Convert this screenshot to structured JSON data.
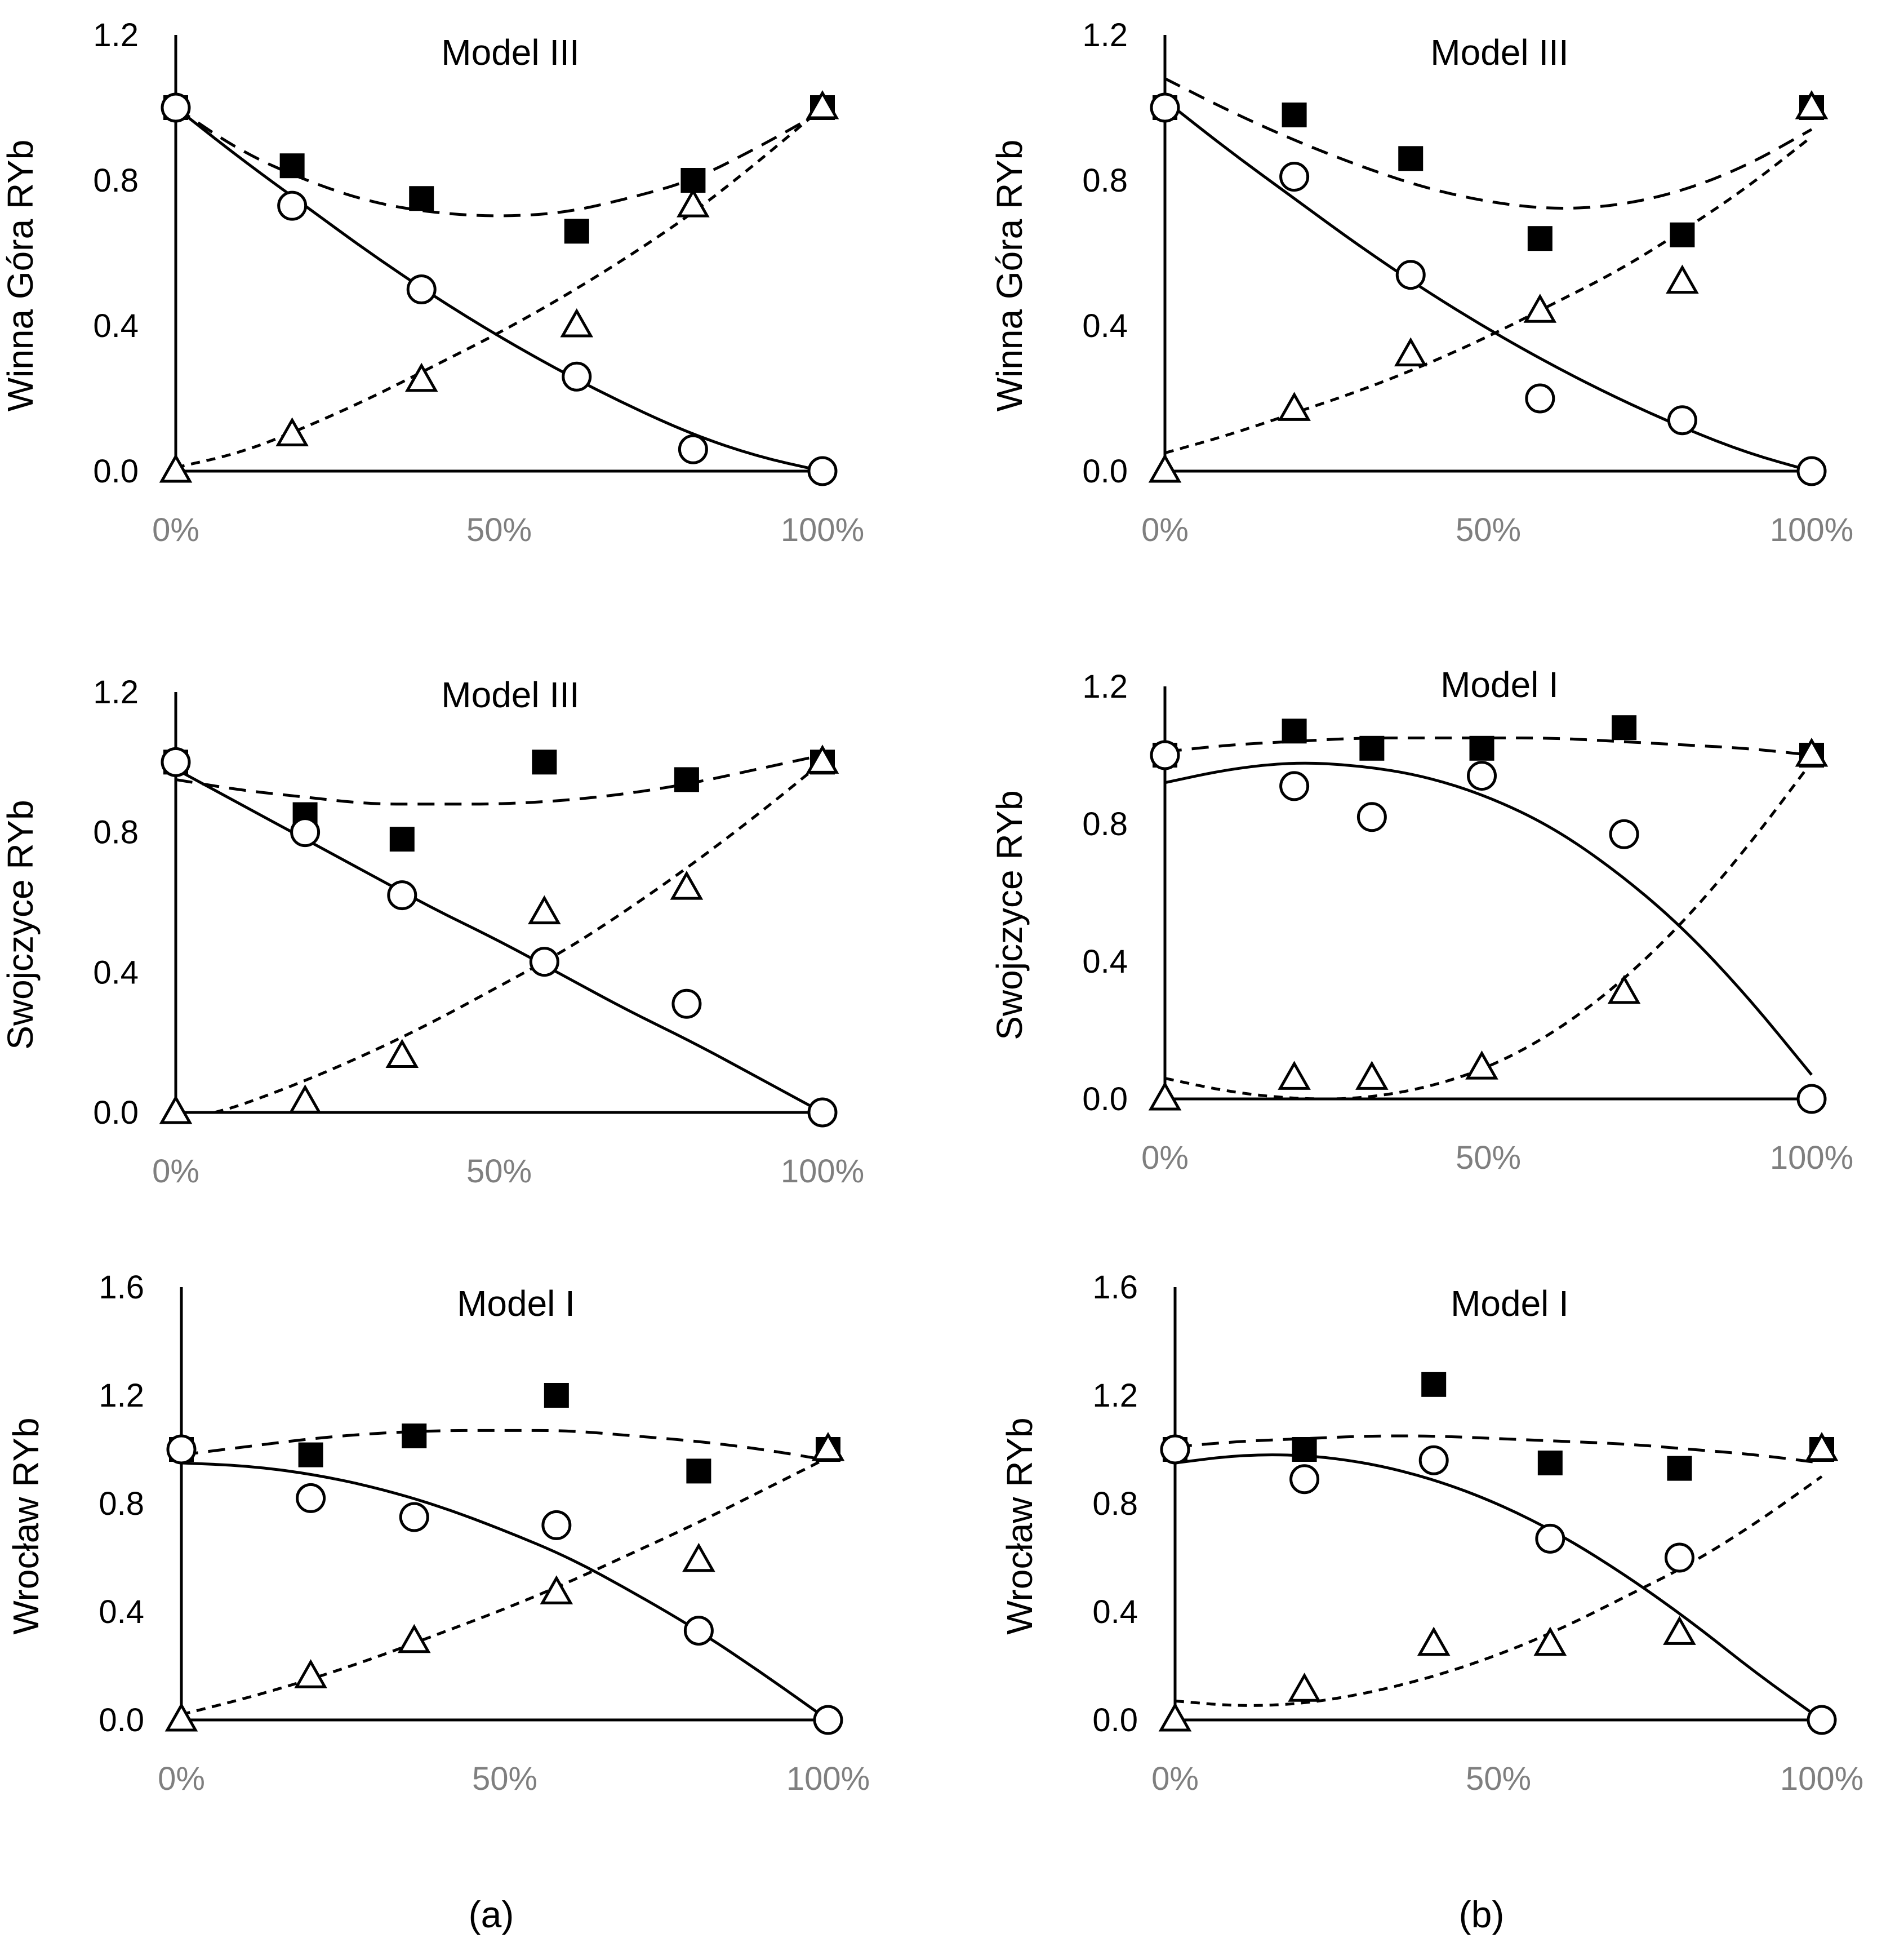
{
  "chart_data": [
    {
      "type": "scatter",
      "title": "Model III",
      "ylabel": "Winna Góra RYb",
      "xlabel": "",
      "ylim": [
        0,
        1.2
      ],
      "yticks": [
        "0.0",
        "0.4",
        "0.8",
        "1.2"
      ],
      "yticks_values": [
        0,
        0.4,
        0.8,
        1.2
      ],
      "xticks": [
        "0%",
        "50%",
        "100%"
      ],
      "series": [
        {
          "name": "squares",
          "marker": "square",
          "x": [
            0,
            18,
            38,
            62,
            80,
            100
          ],
          "y": [
            1.0,
            0.84,
            0.75,
            0.66,
            0.8,
            1.0
          ]
        },
        {
          "name": "circles",
          "marker": "circle",
          "x": [
            0,
            18,
            38,
            62,
            80,
            100
          ],
          "y": [
            1.0,
            0.73,
            0.5,
            0.26,
            0.06,
            0.0
          ]
        },
        {
          "name": "triangles",
          "marker": "triangle",
          "x": [
            0,
            18,
            38,
            62,
            80,
            100
          ],
          "y": [
            0.0,
            0.1,
            0.25,
            0.4,
            0.73,
            1.0
          ]
        }
      ],
      "trendlines": [
        {
          "series": "squares",
          "style": "dashed",
          "x": [
            0,
            10,
            20,
            30,
            40,
            50,
            60,
            70,
            80,
            90,
            100
          ],
          "y": [
            1.0,
            0.88,
            0.8,
            0.74,
            0.71,
            0.7,
            0.71,
            0.75,
            0.8,
            0.89,
            0.99
          ]
        },
        {
          "series": "circles",
          "style": "solid",
          "x": [
            0,
            10,
            20,
            30,
            40,
            50,
            60,
            70,
            80,
            90,
            100
          ],
          "y": [
            1.0,
            0.86,
            0.73,
            0.6,
            0.48,
            0.37,
            0.27,
            0.18,
            0.1,
            0.04,
            0.0
          ]
        },
        {
          "series": "triangles",
          "style": "short-dashed",
          "x": [
            0,
            10,
            20,
            30,
            40,
            50,
            60,
            70,
            80,
            90,
            100
          ],
          "y": [
            0.01,
            0.05,
            0.12,
            0.2,
            0.29,
            0.38,
            0.48,
            0.59,
            0.71,
            0.85,
            1.0
          ]
        }
      ]
    },
    {
      "type": "scatter",
      "title": "Model III",
      "ylabel": "Winna Góra RYb",
      "xlabel": "",
      "ylim": [
        0,
        1.2
      ],
      "yticks": [
        "0.0",
        "0.4",
        "0.8",
        "1.2"
      ],
      "yticks_values": [
        0,
        0.4,
        0.8,
        1.2
      ],
      "xticks": [
        "0%",
        "50%",
        "100%"
      ],
      "series": [
        {
          "name": "squares",
          "marker": "square",
          "x": [
            0,
            20,
            38,
            58,
            80,
            100
          ],
          "y": [
            1.0,
            0.98,
            0.86,
            0.64,
            0.65,
            1.0
          ]
        },
        {
          "name": "circles",
          "marker": "circle",
          "x": [
            0,
            20,
            38,
            58,
            80,
            100
          ],
          "y": [
            1.0,
            0.81,
            0.54,
            0.2,
            0.14,
            0.0
          ]
        },
        {
          "name": "triangles",
          "marker": "triangle",
          "x": [
            0,
            20,
            38,
            58,
            80,
            100
          ],
          "y": [
            0.0,
            0.17,
            0.32,
            0.44,
            0.52,
            1.0
          ]
        }
      ],
      "trendlines": [
        {
          "series": "squares",
          "style": "dashed",
          "x": [
            0,
            10,
            20,
            30,
            40,
            50,
            60,
            70,
            80,
            90,
            100
          ],
          "y": [
            1.08,
            0.99,
            0.91,
            0.84,
            0.78,
            0.74,
            0.72,
            0.73,
            0.77,
            0.84,
            0.94
          ]
        },
        {
          "series": "circles",
          "style": "solid",
          "x": [
            0,
            10,
            20,
            30,
            40,
            50,
            60,
            70,
            80,
            90,
            100
          ],
          "y": [
            1.02,
            0.88,
            0.75,
            0.62,
            0.5,
            0.39,
            0.29,
            0.2,
            0.12,
            0.05,
            0.0
          ]
        },
        {
          "series": "triangles",
          "style": "short-dashed",
          "x": [
            0,
            10,
            20,
            30,
            40,
            50,
            60,
            70,
            80,
            90,
            100
          ],
          "y": [
            0.05,
            0.1,
            0.16,
            0.22,
            0.29,
            0.37,
            0.46,
            0.55,
            0.66,
            0.78,
            0.92
          ]
        }
      ]
    },
    {
      "type": "scatter",
      "title": "Model III",
      "ylabel": "Swojczyce RYb",
      "xlabel": "",
      "ylim": [
        0,
        1.2
      ],
      "yticks": [
        "0.0",
        "0.4",
        "0.8",
        "1.2"
      ],
      "yticks_values": [
        0,
        0.4,
        0.8,
        1.2
      ],
      "xticks": [
        "0%",
        "50%",
        "100%"
      ],
      "series": [
        {
          "name": "squares",
          "marker": "square",
          "x": [
            0,
            20,
            35,
            57,
            79,
            100
          ],
          "y": [
            1.0,
            0.85,
            0.78,
            1.0,
            0.95,
            1.0
          ]
        },
        {
          "name": "circles",
          "marker": "circle",
          "x": [
            0,
            20,
            35,
            57,
            79,
            100
          ],
          "y": [
            1.0,
            0.8,
            0.62,
            0.43,
            0.31,
            0.0
          ]
        },
        {
          "name": "triangles",
          "marker": "triangle",
          "x": [
            0,
            20,
            35,
            57,
            79,
            100
          ],
          "y": [
            0.0,
            0.03,
            0.16,
            0.57,
            0.64,
            1.0
          ]
        }
      ],
      "trendlines": [
        {
          "series": "squares",
          "style": "dashed",
          "x": [
            0,
            10,
            20,
            30,
            40,
            50,
            60,
            70,
            80,
            90,
            100
          ],
          "y": [
            0.95,
            0.92,
            0.9,
            0.88,
            0.88,
            0.88,
            0.89,
            0.91,
            0.94,
            0.98,
            1.02
          ]
        },
        {
          "series": "circles",
          "style": "solid",
          "x": [
            0,
            10,
            20,
            30,
            40,
            50,
            60,
            70,
            80,
            90,
            100
          ],
          "y": [
            0.98,
            0.88,
            0.78,
            0.68,
            0.58,
            0.49,
            0.39,
            0.29,
            0.2,
            0.1,
            0.0
          ]
        },
        {
          "series": "triangles",
          "style": "short-dashed",
          "x": [
            6,
            10,
            20,
            30,
            40,
            50,
            60,
            70,
            80,
            90,
            100
          ],
          "y": [
            0.0,
            0.02,
            0.09,
            0.17,
            0.26,
            0.36,
            0.46,
            0.58,
            0.71,
            0.85,
            1.0
          ]
        }
      ]
    },
    {
      "type": "scatter",
      "title": "Model I",
      "ylabel": "Swojczyce RYb",
      "xlabel": "",
      "ylim": [
        0,
        1.2
      ],
      "yticks": [
        "0.0",
        "0.4",
        "0.8",
        "1.2"
      ],
      "yticks_values": [
        0,
        0.4,
        0.8,
        1.2
      ],
      "xticks": [
        "0%",
        "50%",
        "100%"
      ],
      "series": [
        {
          "name": "squares",
          "marker": "square",
          "x": [
            0,
            20,
            32,
            49,
            71,
            100
          ],
          "y": [
            1.0,
            1.07,
            1.02,
            1.02,
            1.08,
            1.0
          ]
        },
        {
          "name": "circles",
          "marker": "circle",
          "x": [
            0,
            20,
            32,
            49,
            71,
            100
          ],
          "y": [
            1.0,
            0.91,
            0.82,
            0.94,
            0.77,
            0.0
          ]
        },
        {
          "name": "triangles",
          "marker": "triangle",
          "x": [
            0,
            20,
            32,
            49,
            71,
            100
          ],
          "y": [
            0.0,
            0.06,
            0.06,
            0.09,
            0.31,
            1.0
          ]
        }
      ],
      "trendlines": [
        {
          "series": "squares",
          "style": "dashed",
          "x": [
            0,
            10,
            20,
            30,
            40,
            50,
            60,
            70,
            80,
            90,
            100
          ],
          "y": [
            1.01,
            1.03,
            1.04,
            1.05,
            1.05,
            1.05,
            1.05,
            1.04,
            1.03,
            1.02,
            1.0
          ]
        },
        {
          "series": "circles",
          "style": "solid",
          "x": [
            0,
            10,
            20,
            30,
            40,
            50,
            60,
            70,
            80,
            90,
            100
          ],
          "y": [
            0.92,
            0.96,
            0.98,
            0.97,
            0.94,
            0.88,
            0.79,
            0.66,
            0.5,
            0.3,
            0.07
          ]
        },
        {
          "series": "triangles",
          "style": "short-dashed",
          "x": [
            0,
            10,
            20,
            30,
            40,
            50,
            60,
            70,
            80,
            90,
            100
          ],
          "y": [
            0.06,
            0.02,
            0.0,
            0.0,
            0.03,
            0.09,
            0.19,
            0.33,
            0.51,
            0.73,
            0.98
          ]
        }
      ]
    },
    {
      "type": "scatter",
      "title": "Model I",
      "ylabel": "Wrocław RYb",
      "xlabel": "",
      "ylim": [
        0,
        1.6
      ],
      "yticks": [
        "0.0",
        "0.4",
        "0.8",
        "1.2",
        "1.6"
      ],
      "yticks_values": [
        0,
        0.4,
        0.8,
        1.2,
        1.6
      ],
      "xticks": [
        "0%",
        "50%",
        "100%"
      ],
      "series": [
        {
          "name": "squares",
          "marker": "square",
          "x": [
            0,
            20,
            36,
            58,
            80,
            100
          ],
          "y": [
            1.0,
            0.98,
            1.05,
            1.2,
            0.92,
            1.0
          ]
        },
        {
          "name": "circles",
          "marker": "circle",
          "x": [
            0,
            20,
            36,
            58,
            80,
            100
          ],
          "y": [
            1.0,
            0.82,
            0.75,
            0.72,
            0.33,
            0.0
          ]
        },
        {
          "name": "triangles",
          "marker": "triangle",
          "x": [
            0,
            20,
            36,
            58,
            80,
            100
          ],
          "y": [
            0.0,
            0.16,
            0.29,
            0.47,
            0.59,
            1.0
          ]
        }
      ],
      "trendlines": [
        {
          "series": "squares",
          "style": "dashed",
          "x": [
            0,
            10,
            20,
            30,
            40,
            50,
            60,
            70,
            80,
            90,
            100
          ],
          "y": [
            0.98,
            1.01,
            1.04,
            1.06,
            1.07,
            1.07,
            1.07,
            1.05,
            1.03,
            1.0,
            0.96
          ]
        },
        {
          "series": "circles",
          "style": "solid",
          "x": [
            0,
            10,
            20,
            30,
            40,
            50,
            60,
            70,
            80,
            90,
            100
          ],
          "y": [
            0.95,
            0.94,
            0.91,
            0.86,
            0.79,
            0.7,
            0.6,
            0.47,
            0.33,
            0.17,
            0.0
          ]
        },
        {
          "series": "triangles",
          "style": "short-dashed",
          "x": [
            0,
            10,
            20,
            30,
            40,
            50,
            60,
            70,
            80,
            90,
            100
          ],
          "y": [
            0.02,
            0.08,
            0.15,
            0.23,
            0.32,
            0.41,
            0.51,
            0.62,
            0.73,
            0.85,
            0.97
          ]
        }
      ]
    },
    {
      "type": "scatter",
      "title": "Model I",
      "ylabel": "Wrocław RYb",
      "xlabel": "",
      "ylim": [
        0,
        1.6
      ],
      "yticks": [
        "0.0",
        "0.4",
        "0.8",
        "1.2",
        "1.6"
      ],
      "yticks_values": [
        0,
        0.4,
        0.8,
        1.2,
        1.6
      ],
      "xticks": [
        "0%",
        "50%",
        "100%"
      ],
      "series": [
        {
          "name": "squares",
          "marker": "square",
          "x": [
            0,
            20,
            40,
            58,
            78,
            100
          ],
          "y": [
            1.0,
            1.0,
            1.24,
            0.95,
            0.93,
            1.0
          ]
        },
        {
          "name": "circles",
          "marker": "circle",
          "x": [
            0,
            20,
            40,
            58,
            78,
            100
          ],
          "y": [
            1.0,
            0.89,
            0.96,
            0.67,
            0.6,
            0.0
          ]
        },
        {
          "name": "triangles",
          "marker": "triangle",
          "x": [
            0,
            20,
            40,
            58,
            78,
            100
          ],
          "y": [
            0.0,
            0.11,
            0.28,
            0.28,
            0.32,
            1.0
          ]
        }
      ],
      "trendlines": [
        {
          "series": "squares",
          "style": "dashed",
          "x": [
            0,
            10,
            20,
            30,
            40,
            50,
            60,
            70,
            80,
            90,
            100
          ],
          "y": [
            1.01,
            1.03,
            1.04,
            1.05,
            1.05,
            1.04,
            1.03,
            1.02,
            1.0,
            0.98,
            0.95
          ]
        },
        {
          "series": "circles",
          "style": "solid",
          "x": [
            0,
            10,
            20,
            30,
            40,
            50,
            60,
            70,
            80,
            90,
            100
          ],
          "y": [
            0.95,
            0.98,
            0.98,
            0.95,
            0.89,
            0.8,
            0.68,
            0.53,
            0.36,
            0.17,
            0.0
          ]
        },
        {
          "series": "triangles",
          "style": "short-dashed",
          "x": [
            0,
            10,
            20,
            30,
            40,
            50,
            60,
            70,
            80,
            90,
            100
          ],
          "y": [
            0.07,
            0.05,
            0.06,
            0.1,
            0.16,
            0.24,
            0.34,
            0.46,
            0.58,
            0.73,
            0.9
          ]
        }
      ]
    }
  ],
  "captions": {
    "left": "(a)",
    "right": "(b)"
  }
}
